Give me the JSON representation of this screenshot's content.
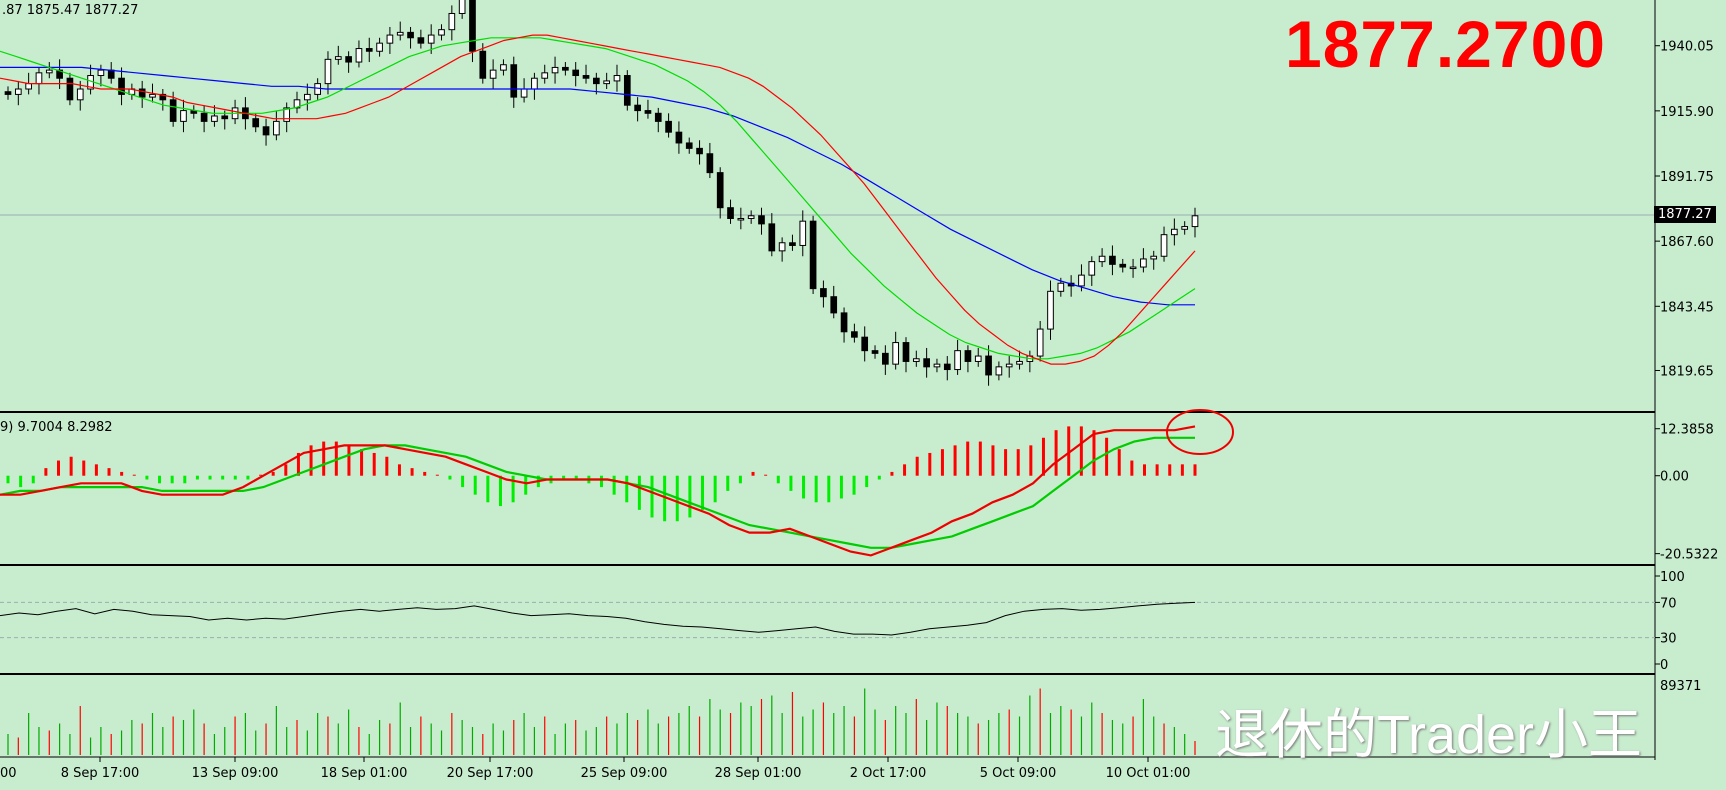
{
  "header": {
    "ohlc_text": ".87 1875.47 1877.27"
  },
  "big_price": "1877.2700",
  "watermark": "退休的Trader小王",
  "price_tag": "1877.27",
  "colors": {
    "background": "#c8ecce",
    "ma_fast": "#ff0000",
    "ma_mid": "#00dd00",
    "ma_slow": "#0000ff",
    "macd_pos": "#ff0000",
    "macd_neg": "#00ee00",
    "vol_up": "#00aa00",
    "vol_down": "#ff0000"
  },
  "chart_data": [
    {
      "type": "candlestick",
      "name": "price",
      "y_ticks": [
        "1940.05",
        "1915.90",
        "1891.75",
        "1867.60",
        "1843.45",
        "1819.65"
      ],
      "current_price": 1877.27,
      "x_labels": [
        "8 Sep 17:00",
        "13 Sep 09:00",
        "18 Sep 01:00",
        "20 Sep 17:00",
        "25 Sep 09:00",
        "28 Sep 01:00",
        "2 Oct 17:00",
        "5 Oct 09:00",
        "10 Oct 01:00"
      ],
      "close": [
        1922,
        1924,
        1926,
        1930,
        1931,
        1928,
        1920,
        1924,
        1929,
        1931,
        1928,
        1922,
        1924,
        1921,
        1922,
        1920,
        1912,
        1916,
        1915,
        1912,
        1914,
        1913,
        1917,
        1913,
        1910,
        1907,
        1912,
        1917,
        1920,
        1922,
        1926,
        1935,
        1936,
        1934,
        1939,
        1938,
        1941,
        1944,
        1945,
        1943,
        1941,
        1944,
        1946,
        1952,
        1959,
        1938,
        1928,
        1931,
        1933,
        1921,
        1924,
        1928,
        1930,
        1932,
        1931,
        1929,
        1928,
        1926,
        1927,
        1929,
        1918,
        1916,
        1915,
        1912,
        1908,
        1904,
        1902,
        1900,
        1893,
        1880,
        1876,
        1876,
        1877,
        1874,
        1864,
        1867,
        1866,
        1875,
        1850,
        1847,
        1841,
        1834,
        1832,
        1827,
        1826,
        1822,
        1830,
        1823,
        1824,
        1821,
        1822,
        1820,
        1827,
        1823,
        1825,
        1818,
        1821,
        1822,
        1823,
        1825,
        1835,
        1849,
        1852,
        1851,
        1855,
        1860,
        1862,
        1859,
        1858,
        1858,
        1861,
        1862,
        1870,
        1872,
        1873,
        1877
      ],
      "ma_fast": [
        1928,
        1927,
        1926,
        1926,
        1926,
        1926,
        1925,
        1924,
        1924,
        1924,
        1923,
        1922,
        1921,
        1919,
        1918,
        1917,
        1916,
        1915,
        1914,
        1913,
        1913,
        1913,
        1913,
        1914,
        1915,
        1917,
        1919,
        1921,
        1924,
        1927,
        1930,
        1933,
        1936,
        1938,
        1940,
        1942,
        1943,
        1944,
        1944,
        1943,
        1942,
        1941,
        1940,
        1939,
        1938,
        1937,
        1936,
        1935,
        1934,
        1933,
        1932,
        1930,
        1928,
        1925,
        1921,
        1917,
        1912,
        1907,
        1901,
        1895,
        1889,
        1882,
        1875,
        1868,
        1861,
        1854,
        1848,
        1842,
        1837,
        1833,
        1829,
        1826,
        1824,
        1822,
        1822,
        1823,
        1825,
        1829,
        1834,
        1840,
        1846,
        1852,
        1858,
        1864
      ],
      "ma_mid": [
        1938,
        1936,
        1934,
        1932,
        1930,
        1928,
        1926,
        1924,
        1922,
        1920,
        1918,
        1917,
        1916,
        1915,
        1915,
        1915,
        1915,
        1916,
        1917,
        1919,
        1921,
        1924,
        1927,
        1930,
        1933,
        1936,
        1938,
        1940,
        1941,
        1942,
        1943,
        1943,
        1943,
        1943,
        1942,
        1941,
        1940,
        1939,
        1937,
        1935,
        1933,
        1930,
        1927,
        1923,
        1918,
        1912,
        1905,
        1898,
        1891,
        1884,
        1877,
        1870,
        1863,
        1857,
        1851,
        1846,
        1841,
        1837,
        1833,
        1830,
        1828,
        1826,
        1825,
        1824,
        1824,
        1825,
        1826,
        1828,
        1831,
        1834,
        1838,
        1842,
        1846,
        1850
      ],
      "ma_slow": [
        1932,
        1932,
        1932,
        1932,
        1931,
        1930,
        1929,
        1928,
        1927,
        1926,
        1925,
        1925,
        1924,
        1924,
        1924,
        1924,
        1924,
        1924,
        1924,
        1924,
        1924,
        1924,
        1923,
        1922,
        1921,
        1919,
        1917,
        1914,
        1910,
        1906,
        1901,
        1896,
        1890,
        1884,
        1878,
        1872,
        1867,
        1862,
        1857,
        1853,
        1850,
        1847,
        1845,
        1844,
        1844
      ]
    },
    {
      "type": "macd",
      "name": "macd",
      "header": "9) 9.7004 8.2982",
      "y_ticks": [
        "12.3858",
        "0.00",
        "-20.5322"
      ],
      "histogram": [
        -2,
        -3,
        -2,
        2,
        4,
        5,
        4,
        3,
        2,
        1,
        0,
        -1,
        -2,
        -2,
        -2,
        -1,
        -1,
        -1,
        -1,
        -1,
        0,
        1,
        3,
        6,
        8,
        9,
        9,
        8,
        7,
        6,
        5,
        3,
        2,
        1,
        0,
        -1,
        -3,
        -5,
        -7,
        -8,
        -7,
        -5,
        -3,
        -2,
        -1,
        -1,
        -2,
        -3,
        -5,
        -7,
        -9,
        -11,
        -12,
        -12,
        -11,
        -9,
        -7,
        -4,
        -2,
        1,
        0,
        -2,
        -4,
        -6,
        -7,
        -7,
        -6,
        -5,
        -3,
        -1,
        1,
        3,
        5,
        6,
        7,
        8,
        9,
        9,
        8,
        7,
        7,
        8,
        10,
        12,
        13,
        13,
        12,
        10,
        7,
        4,
        3,
        3,
        3,
        3,
        3
      ],
      "macd_line": [
        -5,
        -5,
        -4,
        -3,
        -2,
        -2,
        -2,
        -4,
        -5,
        -5,
        -5,
        -5,
        -3,
        0,
        3,
        6,
        7,
        8,
        8,
        8,
        7,
        6,
        5,
        3,
        1,
        -1,
        -2,
        -1,
        -1,
        -1,
        -1,
        -2,
        -4,
        -6,
        -8,
        -10,
        -13,
        -15,
        -15,
        -14,
        -16,
        -18,
        -20,
        -21,
        -19,
        -17,
        -15,
        -12,
        -10,
        -7,
        -5,
        -2,
        3,
        7,
        11,
        12,
        12,
        12,
        12,
        13
      ],
      "signal_line": [
        -5,
        -4,
        -4,
        -3,
        -3,
        -3,
        -3,
        -3,
        -4,
        -4,
        -4,
        -4,
        -4,
        -3,
        -1,
        1,
        3,
        5,
        7,
        8,
        8,
        7,
        6,
        5,
        3,
        1,
        0,
        -1,
        -1,
        -1,
        -1,
        -2,
        -3,
        -5,
        -7,
        -9,
        -11,
        -13,
        -14,
        -15,
        -16,
        -17,
        -18,
        -19,
        -19,
        -18,
        -17,
        -16,
        -14,
        -12,
        -10,
        -8,
        -4,
        0,
        4,
        7,
        9,
        10,
        10,
        10
      ]
    },
    {
      "type": "line",
      "name": "oscillator",
      "y_ticks": [
        "100",
        "70",
        "30",
        "0"
      ],
      "values": [
        55,
        58,
        56,
        60,
        63,
        57,
        62,
        60,
        56,
        55,
        54,
        50,
        52,
        50,
        52,
        51,
        54,
        57,
        60,
        62,
        60,
        62,
        64,
        62,
        63,
        66,
        62,
        58,
        55,
        56,
        57,
        55,
        54,
        52,
        48,
        45,
        43,
        42,
        40,
        38,
        36,
        38,
        40,
        42,
        37,
        34,
        34,
        33,
        36,
        40,
        42,
        44,
        47,
        55,
        60,
        62,
        63,
        61,
        62,
        64,
        66,
        68,
        69,
        70
      ]
    },
    {
      "type": "bar",
      "name": "volume",
      "y_ticks": [
        "89371"
      ],
      "values": [
        30,
        25,
        60,
        40,
        35,
        45,
        30,
        70,
        25,
        40,
        30,
        35,
        50,
        45,
        60,
        40,
        55,
        50,
        65,
        45,
        30,
        40,
        55,
        60,
        35,
        45,
        70,
        40,
        50,
        35,
        60,
        55,
        45,
        65,
        40,
        30,
        50,
        45,
        75,
        40,
        55,
        45,
        35,
        60,
        50,
        40,
        30,
        45,
        35,
        50,
        60,
        40,
        55,
        30,
        45,
        50,
        35,
        40,
        55,
        45,
        60,
        50,
        65,
        45,
        55,
        60,
        70,
        55,
        80,
        65,
        60,
        75,
        70,
        80,
        85,
        60,
        90,
        55,
        65,
        75,
        60,
        70,
        55,
        95,
        65,
        50,
        70,
        60,
        80,
        50,
        75,
        70,
        60,
        55,
        45,
        50,
        60,
        65,
        55,
        85,
        95,
        60,
        70,
        65,
        55,
        75,
        60,
        50,
        45,
        55,
        80,
        55,
        45,
        40,
        30,
        20
      ]
    }
  ]
}
